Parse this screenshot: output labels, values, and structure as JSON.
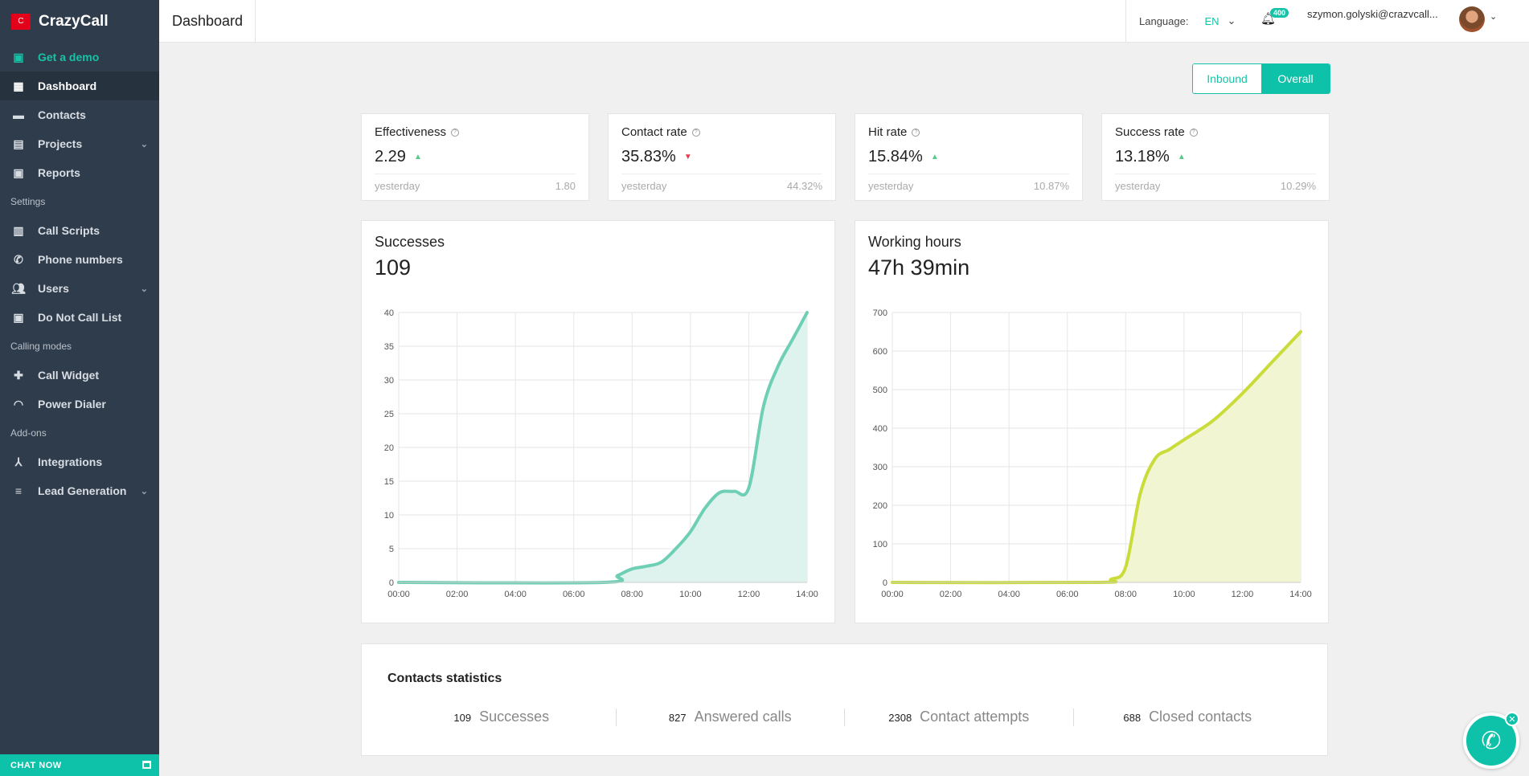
{
  "brand": {
    "name": "CrazyCall",
    "logo_letter": "C"
  },
  "sidebar": {
    "demo": "Get a demo",
    "items": [
      {
        "label": "Dashboard",
        "icon": "dashboard-icon"
      },
      {
        "label": "Contacts",
        "icon": "contacts-icon"
      },
      {
        "label": "Projects",
        "icon": "file-icon",
        "chevron": true
      },
      {
        "label": "Reports",
        "icon": "clipboard-icon"
      }
    ],
    "settings_label": "Settings",
    "settings": [
      {
        "label": "Call Scripts",
        "icon": "script-icon"
      },
      {
        "label": "Phone numbers",
        "icon": "phone-icon"
      },
      {
        "label": "Users",
        "icon": "users-icon",
        "chevron": true
      },
      {
        "label": "Do Not Call List",
        "icon": "clipboard-icon"
      }
    ],
    "modes_label": "Calling modes",
    "modes": [
      {
        "label": "Call Widget",
        "icon": "puzzle-icon"
      },
      {
        "label": "Power Dialer",
        "icon": "headset-icon"
      }
    ],
    "addons_label": "Add-ons",
    "addons": [
      {
        "label": "Integrations",
        "icon": "integrations-icon"
      },
      {
        "label": "Lead Generation",
        "icon": "filter-icon",
        "chevron": true
      }
    ],
    "chat": "CHAT NOW"
  },
  "header": {
    "title": "Dashboard",
    "language_label": "Language:",
    "language": "EN",
    "notifications": "400",
    "email": "szymon.golyski@crazvcall..."
  },
  "toggle": {
    "inbound": "Inbound",
    "overall": "Overall"
  },
  "kpis": [
    {
      "title": "Effectiveness",
      "value": "2.29",
      "trend": "up",
      "yesterday_label": "yesterday",
      "yesterday": "1.80"
    },
    {
      "title": "Contact rate",
      "value": "35.83%",
      "trend": "down",
      "yesterday_label": "yesterday",
      "yesterday": "44.32%"
    },
    {
      "title": "Hit rate",
      "value": "15.84%",
      "trend": "up",
      "yesterday_label": "yesterday",
      "yesterday": "10.87%"
    },
    {
      "title": "Success rate",
      "value": "13.18%",
      "trend": "up",
      "yesterday_label": "yesterday",
      "yesterday": "10.29%"
    }
  ],
  "chart_data": [
    {
      "type": "area",
      "title": "Successes",
      "total": "109",
      "color": "#6fcfb4",
      "fill": "#dff3ee",
      "x": [
        "00:00",
        "02:00",
        "04:00",
        "06:00",
        "08:00",
        "10:00",
        "12:00",
        "14:00"
      ],
      "yticks": [
        0,
        5,
        10,
        15,
        20,
        25,
        30,
        35,
        40
      ],
      "ylim": [
        0,
        40
      ],
      "points": [
        [
          0,
          0
        ],
        [
          7,
          0
        ],
        [
          7.5,
          1
        ],
        [
          8,
          2
        ],
        [
          8.5,
          2.4
        ],
        [
          9,
          3
        ],
        [
          9.5,
          5
        ],
        [
          10,
          7.5
        ],
        [
          10.5,
          11
        ],
        [
          11,
          13.3
        ],
        [
          11.5,
          13.5
        ],
        [
          12,
          14
        ],
        [
          12.5,
          26
        ],
        [
          13,
          32
        ],
        [
          13.5,
          36
        ],
        [
          14,
          40
        ]
      ]
    },
    {
      "type": "area",
      "title": "Working hours",
      "total": "47h 39min",
      "color": "#cadc3a",
      "fill": "#f1f5d2",
      "x": [
        "00:00",
        "02:00",
        "04:00",
        "06:00",
        "08:00",
        "10:00",
        "12:00",
        "14:00"
      ],
      "yticks": [
        0,
        100,
        200,
        300,
        400,
        500,
        600,
        700
      ],
      "ylim": [
        0,
        700
      ],
      "points": [
        [
          0,
          0
        ],
        [
          7,
          0
        ],
        [
          7.5,
          8
        ],
        [
          8,
          40
        ],
        [
          8.5,
          230
        ],
        [
          9,
          320
        ],
        [
          9.5,
          345
        ],
        [
          10,
          370
        ],
        [
          11,
          420
        ],
        [
          12,
          490
        ],
        [
          13,
          570
        ],
        [
          14,
          650
        ]
      ]
    }
  ],
  "stats": {
    "title": "Contacts statistics",
    "items": [
      {
        "value": "109",
        "label": "Successes"
      },
      {
        "value": "827",
        "label": "Answered calls"
      },
      {
        "value": "2308",
        "label": "Contact attempts"
      },
      {
        "value": "688",
        "label": "Closed contacts"
      }
    ]
  }
}
